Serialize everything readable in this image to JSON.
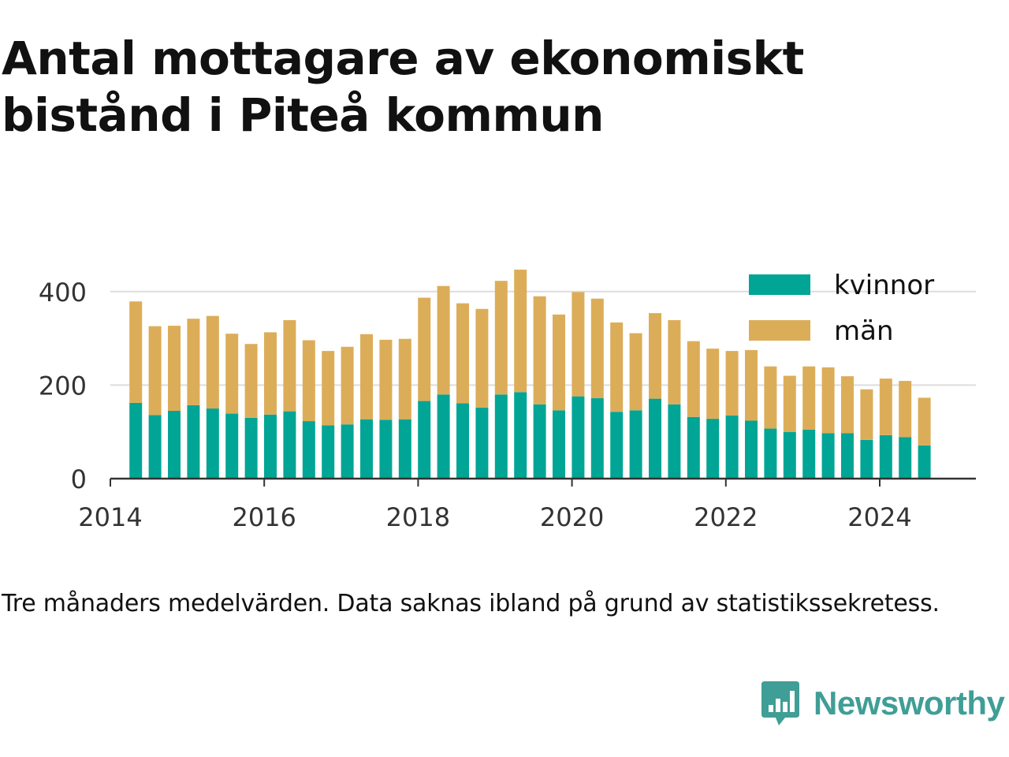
{
  "title": "Antal mottagare av ekonomiskt bistånd i Piteå kommun",
  "note": "Tre månaders medelvärden. Data saknas ibland på grund av statistikssekretess.",
  "brand": {
    "name": "Newsworthy",
    "icon": "newsworthy-logo-icon",
    "color": "#3f9e96"
  },
  "colors": {
    "kvinnor": "#00a596",
    "man": "#dcad58",
    "axis": "#333333",
    "grid": "#dddddd"
  },
  "chart_data": {
    "type": "bar",
    "stacked": true,
    "x_tick_labels": [
      "2014",
      "2016",
      "2018",
      "2020",
      "2022",
      "2024"
    ],
    "y_tick_labels": [
      "0",
      "200",
      "400"
    ],
    "ylim": [
      0,
      450
    ],
    "xlim": [
      2014.0,
      2025.25
    ],
    "grid": true,
    "legend_position": "top-right",
    "x": [
      2014.33,
      2014.58,
      2014.83,
      2015.08,
      2015.33,
      2015.58,
      2015.83,
      2016.08,
      2016.33,
      2016.58,
      2016.83,
      2017.08,
      2017.33,
      2017.58,
      2017.83,
      2018.08,
      2018.33,
      2018.58,
      2018.83,
      2019.08,
      2019.33,
      2019.58,
      2019.83,
      2020.08,
      2020.33,
      2020.58,
      2020.83,
      2021.08,
      2021.33,
      2021.58,
      2021.83,
      2022.08,
      2022.33,
      2022.58,
      2022.83,
      2023.08,
      2023.33,
      2023.58,
      2023.83,
      2024.08,
      2024.33,
      2024.58
    ],
    "series": [
      {
        "name": "kvinnor",
        "values": [
          162,
          136,
          145,
          157,
          150,
          139,
          130,
          137,
          144,
          123,
          114,
          116,
          127,
          126,
          127,
          166,
          180,
          161,
          152,
          180,
          185,
          159,
          146,
          176,
          172,
          143,
          146,
          171,
          159,
          132,
          128,
          135,
          124,
          107,
          100,
          105,
          97,
          97,
          83,
          93,
          89,
          71
        ]
      },
      {
        "name": "män",
        "values": [
          217,
          190,
          182,
          185,
          198,
          171,
          158,
          176,
          195,
          173,
          159,
          166,
          182,
          171,
          172,
          221,
          232,
          214,
          211,
          243,
          262,
          231,
          205,
          223,
          213,
          191,
          165,
          183,
          180,
          162,
          150,
          138,
          151,
          133,
          120,
          135,
          141,
          122,
          108,
          121,
          120,
          102
        ]
      }
    ]
  }
}
